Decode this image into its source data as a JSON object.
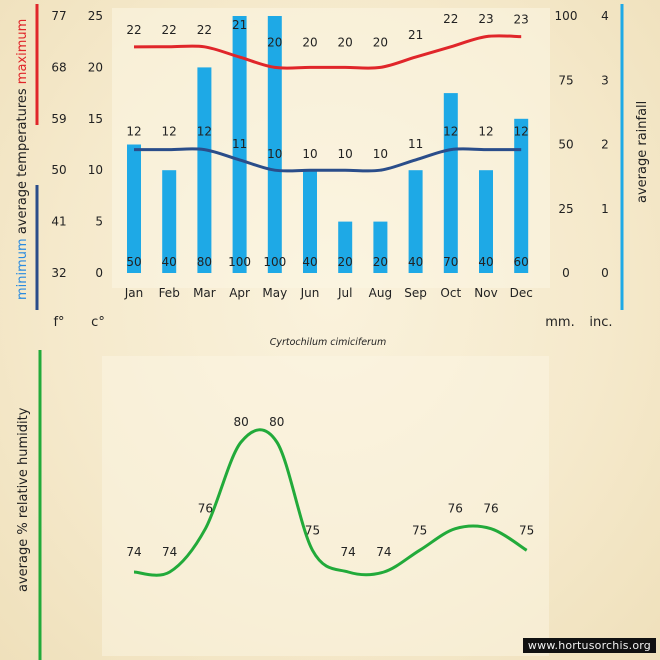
{
  "chart_data": [
    {
      "type": "bar",
      "categories": [
        "Jan",
        "Feb",
        "Mar",
        "Apr",
        "May",
        "Jun",
        "Jul",
        "Aug",
        "Sep",
        "Oct",
        "Nov",
        "Dec"
      ],
      "series": [
        {
          "name": "average rainfall",
          "unit": "mm.",
          "values": [
            50,
            40,
            80,
            100,
            100,
            40,
            20,
            20,
            40,
            70,
            40,
            60
          ],
          "color": "#1ea9e6"
        },
        {
          "name": "maximum",
          "unit": "c°",
          "values": [
            22,
            22,
            22,
            21,
            20,
            20,
            20,
            20,
            21,
            22,
            23,
            23
          ],
          "color": "#e0262a"
        },
        {
          "name": "minimum",
          "unit": "c°",
          "values": [
            12,
            12,
            12,
            11,
            10,
            10,
            10,
            10,
            11,
            12,
            12,
            12
          ],
          "color": "#2a4d8a"
        }
      ],
      "axes": {
        "left_f": {
          "unit": "f°",
          "ticks": [
            "77",
            "68",
            "59",
            "50",
            "41",
            "32"
          ]
        },
        "left_c": {
          "unit": "c°",
          "ticks": [
            "25",
            "20",
            "15",
            "10",
            "5",
            "0"
          ],
          "range": [
            0,
            25
          ]
        },
        "right_mm": {
          "unit": "mm.",
          "ticks": [
            "100",
            "75",
            "50",
            "25",
            "0"
          ],
          "range": [
            0,
            100
          ]
        },
        "right_in": {
          "unit": "inc.",
          "ticks": [
            "4",
            "3",
            "2",
            "1",
            "0"
          ],
          "range": [
            0,
            4
          ]
        }
      },
      "ylabel_left": {
        "lower": "minimum",
        "middle": "average  temperatures",
        "upper": "maximum"
      },
      "ylabel_right": "average rainfall",
      "caption": "Cyrtochilum  cimiciferum"
    },
    {
      "type": "line",
      "categories": [
        "Jan",
        "Feb",
        "Mar",
        "Apr",
        "May",
        "Jun",
        "Jul",
        "Aug",
        "Sep",
        "Oct",
        "Nov",
        "Dec"
      ],
      "series": [
        {
          "name": "average % relative humidity",
          "values": [
            74,
            74,
            76,
            80,
            80,
            75,
            74,
            74,
            75,
            76,
            76,
            75
          ],
          "color": "#22aa3a"
        }
      ],
      "ylabel": "average %  relative humidity"
    }
  ],
  "colors": {
    "max": "#e0262a",
    "min": "#2a4d8a",
    "rain": "#1ea9e6",
    "humidity": "#22aa3a"
  },
  "credit": "www.hortusorchis.org"
}
